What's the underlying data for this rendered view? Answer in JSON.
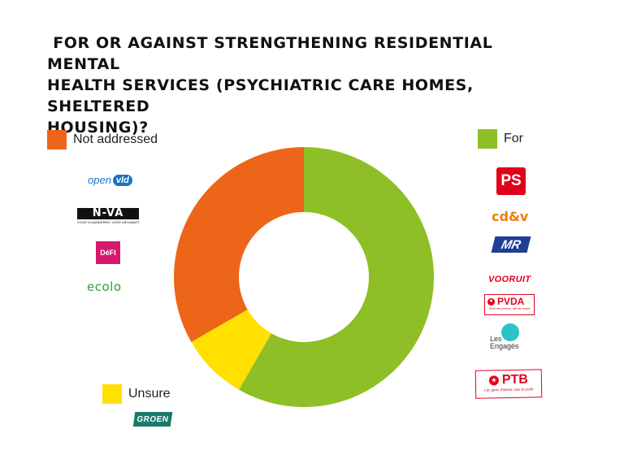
{
  "title": " FOR OR AGAINST STRENGTHENING RESIDENTIAL MENTAL\nHEALTH SERVICES (PSYCHIATRIC CARE HOMES, SHELTERED\nHOUSING)?",
  "chart_data": {
    "type": "pie",
    "donut": true,
    "categories": [
      "For",
      "Unsure",
      "Not addressed"
    ],
    "values": [
      7,
      1,
      4
    ],
    "colors": [
      "#8fbf26",
      "#ffe000",
      "#ec6518"
    ],
    "legend": [
      {
        "label": "Not addressed",
        "color": "#ec6518",
        "position": "top-left",
        "parties": [
          "open vld",
          "N-VA",
          "DéFI",
          "ecolo"
        ]
      },
      {
        "label": "For",
        "color": "#8fbf26",
        "position": "top-right",
        "parties": [
          "PS",
          "cd&v",
          "MR",
          "VOORUIT",
          "PVDA",
          "Les Engagés",
          "PTB"
        ]
      },
      {
        "label": "Unsure",
        "color": "#ffe000",
        "position": "bottom-left",
        "parties": [
          "GROEN"
        ]
      }
    ]
  },
  "logos": {
    "openvld": {
      "text_a": "open",
      "text_b": "vld",
      "sub": ""
    },
    "nva": {
      "text": "N-VA",
      "sub": "VOOR VLAANDEREN. VOOR WELVAART"
    },
    "defi": {
      "text": "DéFI"
    },
    "ecolo": {
      "text": "ecolo"
    },
    "ps": {
      "text": "PS"
    },
    "cdv": {
      "text": "cd&v"
    },
    "mr": {
      "text": "MR"
    },
    "vooruit": {
      "text": "VOORUIT"
    },
    "pvda": {
      "text": "PVDA",
      "sub": "Sterk als mensen, niet als macht"
    },
    "engages": {
      "text_a": "Les",
      "text_b": "Engagés"
    },
    "ptb": {
      "text": "PTB",
      "sub": "Les gens d'abord, pas le profit"
    },
    "groen": {
      "text": "GROEN"
    }
  }
}
